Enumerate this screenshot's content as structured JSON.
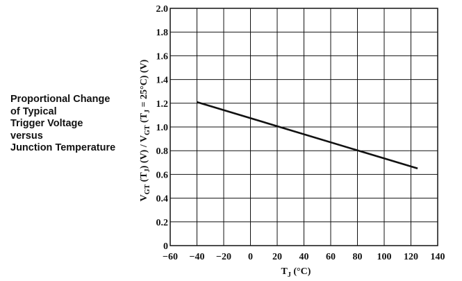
{
  "side_title": {
    "lines": [
      "Proportional Change",
      "of Typical",
      "Trigger Voltage",
      "versus",
      "Junction Temperature"
    ]
  },
  "chart_data": {
    "type": "line",
    "title": "Proportional Change of Typical Trigger Voltage versus Junction Temperature",
    "xlabel": "TJ (°C)",
    "ylabel": "VGT (TJ) (V) / VGT (TJ = 25°C) (V)",
    "xlim": [
      -60,
      140
    ],
    "ylim": [
      0,
      2.0
    ],
    "xticks": [
      "−60",
      "−40",
      "−20",
      "0",
      "20",
      "40",
      "60",
      "80",
      "100",
      "120",
      "140"
    ],
    "yticks": [
      "0",
      "0.2",
      "0.4",
      "0.6",
      "0.8",
      "1.0",
      "1.2",
      "1.4",
      "1.6",
      "1.8",
      "2.0"
    ],
    "grid": true,
    "series": [
      {
        "x": [
          -40,
          125
        ],
        "y": [
          1.21,
          0.65
        ]
      }
    ],
    "colors": {
      "line": "#111111",
      "grid": "#111111"
    }
  }
}
